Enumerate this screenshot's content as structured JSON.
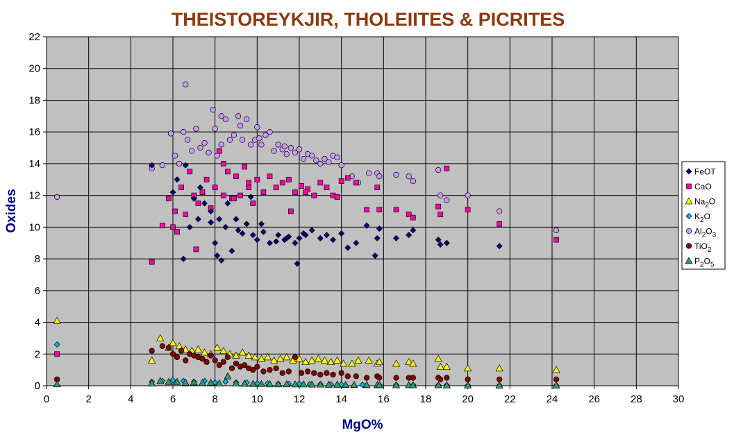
{
  "chart_data": {
    "type": "scatter",
    "title": "THEISTOREYKJIR, THOLEIITES & PICRITES",
    "xlabel": "MgO%",
    "ylabel": "Oxides",
    "xlim": [
      0,
      30
    ],
    "ylim": [
      0,
      22
    ],
    "x_ticks": [
      "0",
      "2",
      "4",
      "6",
      "8",
      "10",
      "12",
      "14",
      "16",
      "18",
      "20",
      "22",
      "24",
      "26",
      "28",
      "30"
    ],
    "y_ticks": [
      "0",
      "2",
      "4",
      "6",
      "8",
      "10",
      "12",
      "14",
      "16",
      "18",
      "20",
      "22"
    ],
    "grid": true,
    "legend_position": "right",
    "plot_background": "#c0c0c0",
    "series": [
      {
        "name": "FeOT",
        "label_main": "FeOT",
        "label_sub": "",
        "label_tail": "",
        "marker": "diamond",
        "color": "#000080",
        "x": [
          5.0,
          6.0,
          6.2,
          6.5,
          6.8,
          7.0,
          7.2,
          7.5,
          7.8,
          8.0,
          8.2,
          8.5,
          8.8,
          9.0,
          9.3,
          9.5,
          9.8,
          10.0,
          10.3,
          10.6,
          11.0,
          11.3,
          11.5,
          11.8,
          12.0,
          12.3,
          12.6,
          13.0,
          13.3,
          13.6,
          14.0,
          14.3,
          14.7,
          15.2,
          15.7,
          15.8,
          16.6,
          17.2,
          17.4,
          18.6,
          18.7,
          19.0,
          21.5,
          6.6,
          7.3,
          7.8,
          8.1,
          8.3,
          8.6,
          9.1,
          9.7,
          10.2,
          10.9,
          11.4,
          11.9,
          12.2,
          15.6
        ],
        "y": [
          13.9,
          12.2,
          13.0,
          8.0,
          10.0,
          11.8,
          10.5,
          11.5,
          10.3,
          9.0,
          10.5,
          10.0,
          8.5,
          10.5,
          9.6,
          10.2,
          9.5,
          9.2,
          9.7,
          9.0,
          9.5,
          9.2,
          9.4,
          9.0,
          9.3,
          9.5,
          9.8,
          9.3,
          9.5,
          9.2,
          9.6,
          8.7,
          9.0,
          10.1,
          9.3,
          9.9,
          9.3,
          9.5,
          9.8,
          9.2,
          8.9,
          9.0,
          8.8,
          13.9,
          12.5,
          11.0,
          8.2,
          7.9,
          11.5,
          9.8,
          11.9,
          10.2,
          9.1,
          9.3,
          7.7,
          9.6,
          8.2
        ]
      },
      {
        "name": "CaO",
        "label_main": "CaO",
        "label_sub": "",
        "label_tail": "",
        "marker": "square",
        "color": "#ff00aa",
        "x": [
          0.5,
          5.0,
          5.5,
          5.8,
          6.0,
          6.2,
          6.4,
          6.6,
          6.8,
          7.0,
          7.2,
          7.4,
          7.6,
          7.8,
          8.0,
          8.2,
          8.4,
          8.6,
          8.8,
          9.0,
          9.2,
          9.4,
          9.6,
          9.8,
          10.0,
          10.3,
          10.6,
          10.9,
          11.2,
          11.5,
          11.8,
          12.1,
          12.4,
          12.7,
          13.0,
          13.3,
          13.6,
          14.0,
          14.3,
          14.7,
          15.2,
          15.7,
          15.8,
          16.6,
          17.2,
          17.4,
          18.6,
          18.7,
          19.0,
          20.0,
          21.5,
          24.2,
          7.1,
          6.1,
          8.4,
          8.9,
          9.6,
          11.6,
          12.3,
          13.8
        ],
        "y": [
          2.0,
          7.8,
          10.1,
          11.8,
          10.0,
          9.7,
          12.5,
          10.8,
          13.5,
          12.0,
          11.5,
          12.2,
          13.0,
          11.2,
          12.5,
          14.8,
          14.0,
          13.5,
          11.8,
          13.2,
          12.0,
          13.8,
          12.5,
          11.5,
          13.0,
          12.2,
          13.2,
          12.5,
          12.8,
          13.0,
          12.2,
          12.6,
          12.4,
          12.0,
          12.8,
          12.5,
          12.0,
          12.9,
          13.1,
          12.8,
          11.1,
          12.5,
          11.1,
          11.1,
          10.8,
          10.6,
          11.3,
          10.8,
          13.7,
          11.1,
          10.2,
          9.2,
          8.6,
          11.0,
          12.0,
          11.8,
          12.8,
          11.0,
          12.2,
          11.9
        ]
      },
      {
        "name": "Na2O",
        "label_main": "Na",
        "label_sub": "2",
        "label_tail": "O",
        "marker": "triangle",
        "color": "#ffff00",
        "x": [
          0.5,
          5.0,
          5.4,
          5.8,
          6.0,
          6.3,
          6.6,
          6.9,
          7.2,
          7.5,
          7.8,
          8.1,
          8.4,
          8.7,
          9.0,
          9.3,
          9.6,
          9.9,
          10.2,
          10.5,
          10.8,
          11.1,
          11.4,
          11.7,
          12.0,
          12.3,
          12.6,
          12.9,
          13.2,
          13.5,
          13.8,
          14.1,
          14.5,
          14.8,
          15.3,
          15.7,
          15.8,
          16.6,
          17.2,
          17.4,
          18.6,
          18.7,
          19.0,
          20.0,
          21.5,
          24.2
        ],
        "y": [
          4.1,
          1.6,
          3.0,
          2.4,
          2.7,
          2.5,
          2.3,
          2.2,
          2.3,
          2.1,
          2.0,
          2.4,
          2.2,
          2.0,
          1.9,
          2.1,
          1.9,
          1.8,
          1.7,
          1.8,
          1.6,
          1.7,
          1.8,
          1.6,
          1.7,
          1.5,
          1.6,
          1.7,
          1.6,
          1.5,
          1.6,
          1.4,
          1.4,
          1.6,
          1.6,
          1.4,
          1.5,
          1.4,
          1.5,
          1.4,
          1.7,
          1.2,
          1.2,
          1.1,
          1.1,
          1.0
        ]
      },
      {
        "name": "K2O",
        "label_main": "K",
        "label_sub": "2",
        "label_tail": "O",
        "marker": "diamond",
        "color": "#00b0f0",
        "x": [
          0.5,
          5.0,
          5.5,
          6.0,
          6.5,
          7.0,
          7.5,
          8.0,
          8.5,
          9.0,
          9.5,
          10.0,
          10.5,
          11.0,
          11.5,
          12.0,
          12.5,
          13.0,
          13.5,
          14.0,
          15.0,
          15.8,
          16.6,
          17.4,
          18.6,
          19.0,
          20.0,
          21.5,
          24.2
        ],
        "y": [
          2.6,
          0.25,
          0.3,
          0.35,
          0.3,
          0.25,
          0.3,
          0.2,
          0.25,
          0.2,
          0.2,
          0.15,
          0.15,
          0.12,
          0.12,
          0.12,
          0.1,
          0.1,
          0.08,
          0.08,
          0.06,
          0.06,
          0.05,
          0.05,
          0.04,
          0.04,
          0.03,
          0.03,
          0.02
        ]
      },
      {
        "name": "Al2O3",
        "label_main": "Al",
        "label_sub": "2",
        "label_tail": "O3",
        "marker": "circle",
        "color": "#cc99ff",
        "x": [
          0.5,
          5.0,
          5.5,
          5.9,
          6.1,
          6.3,
          6.5,
          6.6,
          6.7,
          6.9,
          7.1,
          7.3,
          7.5,
          7.7,
          7.9,
          8.0,
          8.1,
          8.3,
          8.5,
          8.7,
          8.9,
          9.1,
          9.3,
          9.5,
          9.7,
          9.9,
          10.0,
          10.2,
          10.4,
          10.6,
          10.8,
          11.0,
          11.2,
          11.4,
          11.6,
          11.8,
          12.0,
          12.2,
          12.4,
          12.6,
          12.8,
          13.0,
          13.2,
          13.4,
          13.6,
          13.8,
          14.0,
          14.5,
          14.8,
          15.3,
          15.7,
          15.8,
          16.6,
          17.2,
          17.4,
          18.6,
          18.7,
          19.0,
          20.0,
          21.5,
          24.2,
          8.3,
          9.2,
          10.1,
          11.3
        ],
        "y": [
          11.9,
          13.7,
          13.9,
          15.9,
          14.5,
          14.0,
          16.0,
          19.0,
          15.5,
          14.8,
          16.2,
          15.0,
          15.3,
          14.7,
          17.4,
          16.2,
          14.5,
          17.0,
          16.8,
          15.5,
          15.8,
          17.0,
          15.5,
          16.8,
          15.2,
          15.5,
          16.3,
          15.2,
          15.8,
          16.0,
          14.8,
          15.2,
          14.9,
          14.6,
          15.0,
          14.7,
          14.9,
          14.3,
          14.6,
          14.5,
          14.2,
          14.0,
          14.3,
          14.1,
          14.5,
          14.4,
          13.9,
          13.2,
          12.8,
          13.4,
          13.4,
          13.2,
          13.3,
          13.2,
          12.9,
          13.6,
          12.0,
          11.7,
          12.0,
          11.0,
          9.8,
          15.2,
          16.4,
          15.6,
          15.1
        ]
      },
      {
        "name": "TiO2",
        "label_main": "TiO",
        "label_sub": "2",
        "label_tail": "",
        "marker": "circle",
        "color": "#800000",
        "x": [
          0.5,
          5.0,
          5.5,
          5.8,
          6.0,
          6.2,
          6.4,
          6.6,
          6.8,
          7.0,
          7.2,
          7.4,
          7.6,
          7.8,
          8.0,
          8.2,
          8.4,
          8.6,
          8.8,
          9.0,
          9.2,
          9.4,
          9.6,
          9.8,
          10.0,
          10.3,
          10.6,
          10.9,
          11.2,
          11.5,
          11.8,
          12.1,
          12.4,
          12.7,
          13.0,
          13.3,
          13.6,
          14.0,
          14.3,
          14.7,
          15.2,
          15.7,
          15.8,
          16.6,
          17.2,
          17.4,
          18.6,
          18.7,
          19.0,
          20.0,
          21.5,
          24.2
        ],
        "y": [
          0.4,
          2.2,
          2.5,
          2.4,
          2.0,
          1.8,
          2.2,
          1.6,
          2.0,
          1.9,
          1.8,
          1.7,
          1.5,
          1.9,
          1.6,
          1.3,
          1.5,
          1.8,
          1.1,
          1.4,
          1.2,
          1.3,
          1.1,
          1.0,
          1.2,
          0.9,
          1.0,
          1.1,
          0.8,
          0.9,
          1.8,
          0.8,
          0.9,
          0.8,
          0.7,
          0.8,
          0.7,
          0.8,
          0.6,
          0.6,
          0.5,
          0.6,
          0.5,
          0.5,
          0.5,
          0.5,
          0.5,
          0.4,
          0.5,
          0.4,
          0.4,
          0.4
        ]
      },
      {
        "name": "P2O5",
        "label_main": "P",
        "label_sub": "2",
        "label_tail": "O5",
        "marker": "triangle",
        "color": "#339966",
        "x": [
          0.5,
          5.0,
          5.4,
          5.8,
          6.2,
          6.6,
          7.0,
          7.4,
          7.8,
          8.2,
          8.6,
          9.0,
          9.4,
          9.8,
          10.2,
          10.6,
          11.0,
          11.4,
          11.8,
          12.2,
          12.6,
          13.0,
          13.4,
          13.8,
          14.2,
          14.6,
          15.2,
          15.7,
          15.8,
          16.6,
          17.2,
          17.4,
          18.6,
          19.0,
          20.0,
          21.5,
          24.2
        ],
        "y": [
          0.1,
          0.15,
          0.3,
          0.25,
          0.25,
          0.2,
          0.22,
          0.18,
          0.2,
          0.15,
          0.6,
          0.15,
          0.13,
          0.12,
          0.12,
          0.1,
          0.1,
          0.1,
          0.09,
          0.09,
          0.08,
          0.08,
          0.07,
          0.07,
          0.06,
          0.06,
          0.05,
          0.05,
          0.05,
          0.04,
          0.04,
          0.04,
          0.04,
          0.03,
          0.03,
          0.02,
          0.02
        ]
      }
    ]
  }
}
